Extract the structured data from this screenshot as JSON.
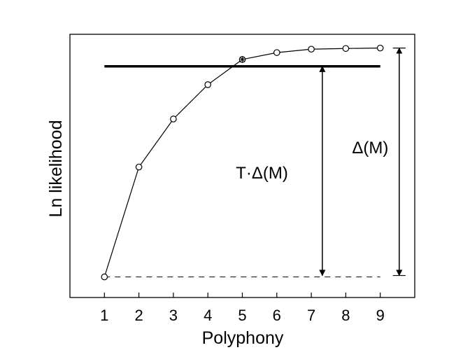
{
  "chart_data": {
    "type": "line",
    "title": "",
    "xlabel": "Polyphony",
    "ylabel": "Ln likelihood",
    "x": [
      1,
      2,
      3,
      4,
      5,
      6,
      7,
      8,
      9
    ],
    "xlim": [
      0,
      10
    ],
    "ylim": [
      -0.09,
      1.06
    ],
    "series": [
      {
        "values": [
          0.0,
          0.48,
          0.69,
          0.84,
          0.95,
          0.98,
          0.995,
          0.998,
          1.0
        ]
      }
    ],
    "threshold": 0.92,
    "baseline": 0.0,
    "highlighted_x": 5,
    "annotations": [
      {
        "text": "T·Δ(M)"
      },
      {
        "text": "Δ(M)"
      }
    ],
    "grid": false,
    "y_ticks_shown": false
  }
}
